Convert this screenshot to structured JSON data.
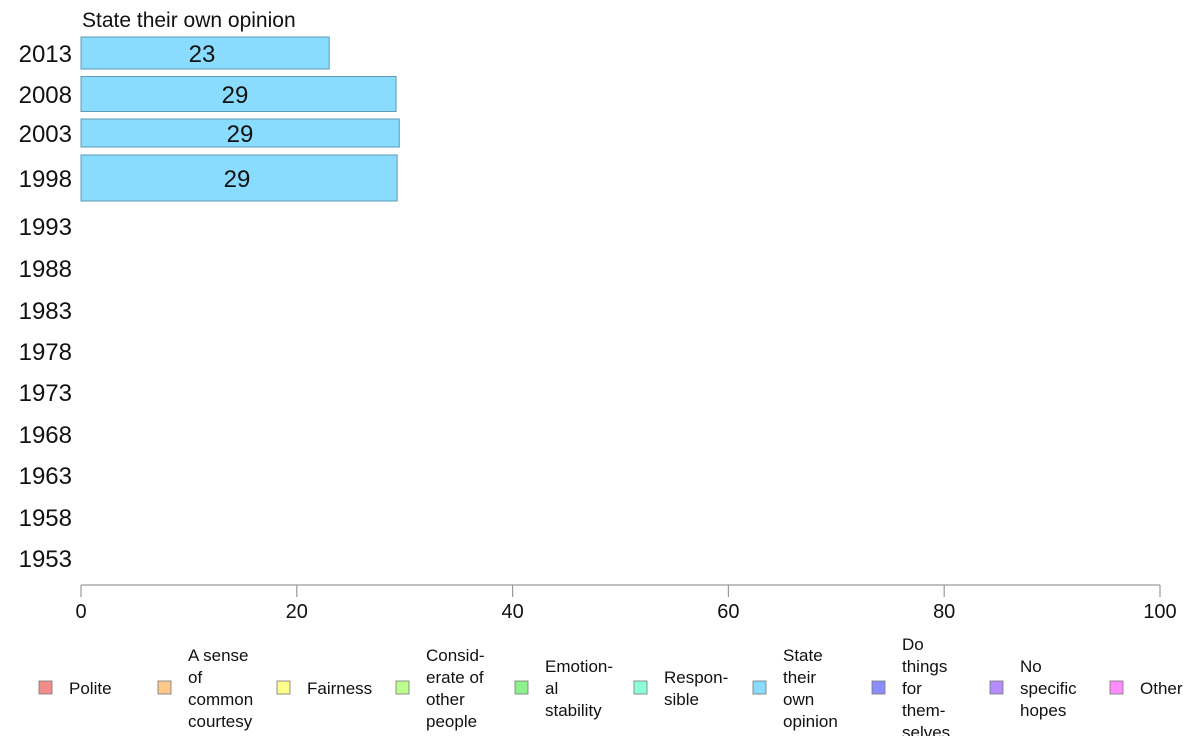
{
  "chart_data": {
    "type": "bar",
    "orientation": "horizontal",
    "title": "State their own opinion",
    "categories": [
      "2013",
      "2008",
      "2003",
      "1998",
      "1993",
      "1988",
      "1983",
      "1978",
      "1973",
      "1968",
      "1963",
      "1958",
      "1953"
    ],
    "values": [
      23,
      29,
      29,
      29,
      null,
      null,
      null,
      null,
      null,
      null,
      null,
      null,
      null
    ],
    "value_labels": [
      "23",
      "29",
      "29",
      "29",
      "",
      "",
      "",
      "",
      "",
      "",
      "",
      "",
      ""
    ],
    "xlim": [
      0,
      100
    ],
    "xticks": [
      "0",
      "20",
      "40",
      "60",
      "80",
      "100"
    ],
    "bar_color": "#8ADCFF",
    "bar_stroke": "#5B9BB5",
    "grid": false,
    "legend_position": "bottom",
    "legend": [
      {
        "label": [
          "Polite"
        ],
        "color": "#F58C8C"
      },
      {
        "label": [
          "A sense",
          "of",
          "common",
          "courtesy"
        ],
        "color": "#FFC88C"
      },
      {
        "label": [
          "Fairness"
        ],
        "color": "#FFFF8C"
      },
      {
        "label": [
          "Consid-",
          "erate of",
          "other",
          "people"
        ],
        "color": "#BCFF8C"
      },
      {
        "label": [
          "Emotion-",
          "al",
          "stability"
        ],
        "color": "#8CF08C"
      },
      {
        "label": [
          "Respon-",
          "sible"
        ],
        "color": "#8CFFDC"
      },
      {
        "label": [
          "State",
          "their",
          "own",
          "opinion"
        ],
        "color": "#8ADCFF"
      },
      {
        "label": [
          "Do",
          "things",
          "for",
          "them-",
          "selves"
        ],
        "color": "#8C8CFF"
      },
      {
        "label": [
          "No",
          "specific",
          "hopes"
        ],
        "color": "#B48CFF"
      },
      {
        "label": [
          "Other"
        ],
        "color": "#FF8CFF"
      }
    ]
  }
}
